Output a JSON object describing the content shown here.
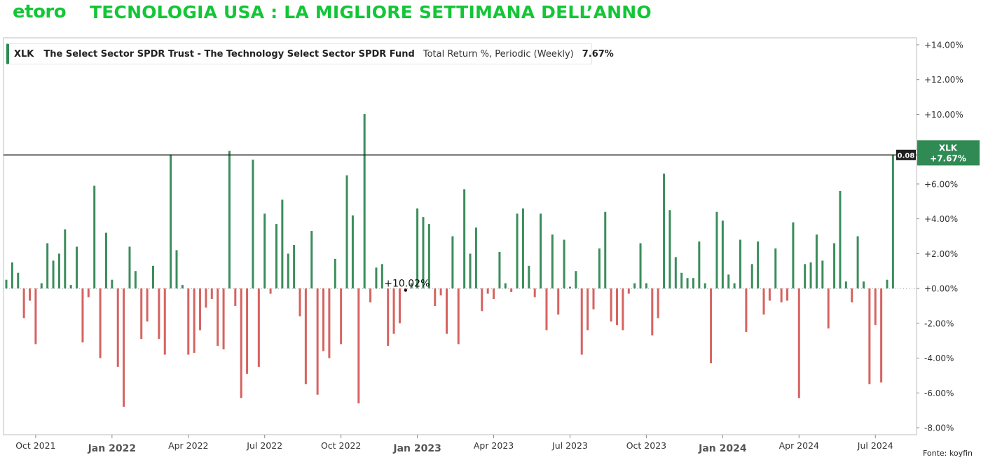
{
  "logo_text": "etoro",
  "headline": "TECNOLOGIA USA : LA MIGLIORE SETTIMANA DELL’ANNO",
  "source": "Fonte: koyfin",
  "legend": {
    "ticker": "XLK",
    "name": "The Select Sector SPDR Trust - The Technology Select Sector SPDR Fund",
    "metric": "Total Return %, Periodic (Weekly)",
    "value": "7.67%"
  },
  "colors": {
    "positive": "#3b8d5c",
    "negative": "#d66360",
    "brand": "#13c636",
    "tag": "#2f8a54"
  },
  "chart_data": {
    "type": "bar",
    "title": "",
    "xlabel": "",
    "ylabel": "",
    "ylim": [
      -8.4,
      14.4
    ],
    "grid": false,
    "y_ticks": [
      "-8.00%",
      "-6.00%",
      "-4.00%",
      "-2.00%",
      "+0.00%",
      "+2.00%",
      "+4.00%",
      "+6.00%",
      "+8.00%",
      "+10.00%",
      "+12.00%",
      "+14.00%"
    ],
    "x_ticks": [
      "Oct 2021",
      "Jan 2022",
      "Apr 2022",
      "Jul 2022",
      "Oct 2022",
      "Jan 2023",
      "Apr 2023",
      "Jul 2023",
      "Oct 2023",
      "Jan 2024",
      "Apr 2024",
      "Jul 2024"
    ],
    "x_ticks_bold": [
      "Jan 2022",
      "Jan 2023",
      "Jan 2024"
    ],
    "tick_weeks": [
      5,
      18,
      31,
      44,
      57,
      70,
      83,
      96,
      109,
      122,
      135,
      148
    ],
    "annotations": [
      {
        "week": 68,
        "text": "+10.02%"
      }
    ],
    "reference_line": {
      "label": "0.08"
    },
    "last_value_tag": {
      "ticker": "XLK",
      "value": "+7.67%"
    },
    "series": [
      {
        "name": "XLK",
        "values": [
          0.5,
          1.5,
          0.9,
          -1.7,
          -0.7,
          -3.2,
          0.3,
          2.6,
          1.6,
          2.0,
          3.4,
          0.2,
          2.4,
          -3.1,
          -0.5,
          5.9,
          -4.0,
          3.2,
          0.5,
          -4.5,
          -6.8,
          2.4,
          1.0,
          -2.9,
          -1.9,
          1.3,
          -2.9,
          -3.8,
          7.7,
          2.2,
          0.2,
          -3.8,
          -3.7,
          -2.4,
          -1.1,
          -0.6,
          -3.3,
          -3.5,
          7.9,
          -1.0,
          -6.3,
          -4.9,
          7.4,
          -4.5,
          4.3,
          -0.3,
          3.7,
          5.1,
          2.0,
          2.5,
          -1.6,
          -5.5,
          3.3,
          -6.1,
          -3.6,
          -4.0,
          1.7,
          -3.2,
          6.5,
          4.2,
          -6.6,
          10.02,
          -0.8,
          1.2,
          1.4,
          -3.3,
          -2.6,
          -2.0,
          -0.1,
          0.3,
          4.6,
          4.1,
          3.7,
          -1.0,
          -0.4,
          -2.6,
          3.0,
          -3.2,
          5.7,
          2.0,
          3.5,
          -1.3,
          -0.3,
          -0.6,
          2.1,
          0.3,
          -0.2,
          4.3,
          4.6,
          1.3,
          -0.5,
          4.3,
          -2.4,
          3.1,
          -1.5,
          2.8,
          0.1,
          1.0,
          -3.8,
          -2.4,
          -1.2,
          2.3,
          4.4,
          -1.9,
          -2.1,
          -2.4,
          -0.3,
          0.3,
          2.6,
          0.3,
          -2.7,
          -1.7,
          6.6,
          4.5,
          1.8,
          0.9,
          0.6,
          0.6,
          2.7,
          0.3,
          -4.3,
          4.4,
          3.9,
          0.8,
          0.3,
          2.8,
          -2.5,
          1.4,
          2.7,
          -1.5,
          -0.7,
          2.3,
          -0.8,
          -0.7,
          3.8,
          -6.3,
          1.4,
          1.5,
          3.1,
          1.6,
          -2.3,
          2.6,
          5.6,
          0.4,
          -0.8,
          3.0,
          0.4,
          -5.5,
          -2.1,
          -5.4,
          0.5,
          7.67
        ]
      }
    ]
  }
}
